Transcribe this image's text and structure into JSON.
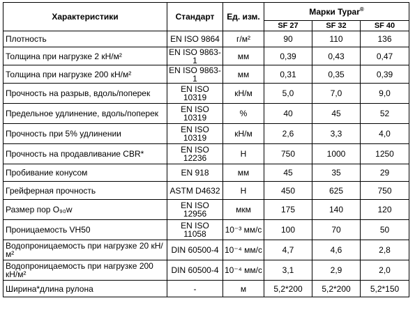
{
  "table": {
    "headers": {
      "feature": "Характеристики",
      "standard": "Стандарт",
      "unit": "Ед. изм.",
      "brands": "Марки Typar",
      "brands_sup": "®"
    },
    "brands": [
      "SF 27",
      "SF 32",
      "SF 40"
    ],
    "rows": [
      {
        "feature": "Плотность",
        "standard": "EN ISO 9864",
        "unit": "г/м²",
        "values": [
          "90",
          "110",
          "136"
        ]
      },
      {
        "feature": "Толщина при нагрузке 2 кН/м²",
        "standard": "EN ISO 9863-1",
        "unit": "мм",
        "values": [
          "0,39",
          "0,43",
          "0,47"
        ]
      },
      {
        "feature": "Толщина при нагрузке 200 кН/м²",
        "standard": "EN ISO 9863-1",
        "unit": "мм",
        "values": [
          "0,31",
          "0,35",
          "0,39"
        ]
      },
      {
        "feature": "Прочность на разрыв, вдоль/поперек",
        "standard": "EN ISO 10319",
        "unit": "кН/м",
        "values": [
          "5,0",
          "7,0",
          "9,0"
        ]
      },
      {
        "feature": "Предельное удлинение, вдоль/поперек",
        "standard": "EN ISO 10319",
        "unit": "%",
        "values": [
          "40",
          "45",
          "52"
        ]
      },
      {
        "feature": "Прочность при 5% удлинении",
        "standard": "EN ISO 10319",
        "unit": "кН/м",
        "values": [
          "2,6",
          "3,3",
          "4,0"
        ]
      },
      {
        "feature": "Прочность на продавливание CBR*",
        "standard": "EN ISO 12236",
        "unit": "Н",
        "values": [
          "750",
          "1000",
          "1250"
        ]
      },
      {
        "feature": "Пробивание конусом",
        "standard": "EN 918",
        "unit": "мм",
        "values": [
          "45",
          "35",
          "29"
        ]
      },
      {
        "feature": "Грейферная прочность",
        "standard": "ASTM D4632",
        "unit": "Н",
        "values": [
          "450",
          "625",
          "750"
        ]
      },
      {
        "feature": "Размер пор O₉₀w",
        "standard": "EN ISO 12956",
        "unit": "мкм",
        "values": [
          "175",
          "140",
          "120"
        ]
      },
      {
        "feature": "Проницаемость VH50",
        "standard": "EN ISO 11058",
        "unit": "10⁻³ мм/с",
        "values": [
          "100",
          "70",
          "50"
        ]
      },
      {
        "feature": "Водопроницаемость при нагрузке 20 кН/м²",
        "standard": "DIN 60500-4",
        "unit": "10⁻⁴ мм/с",
        "values": [
          "4,7",
          "4,6",
          "2,8"
        ]
      },
      {
        "feature": "Водопроницаемость при нагрузке 200 кН/м²",
        "standard": "DIN 60500-4",
        "unit": "10⁻⁴ мм/с",
        "values": [
          "3,1",
          "2,9",
          "2,0"
        ]
      },
      {
        "feature": "Ширина*длина рулона",
        "standard": "-",
        "unit": "м",
        "values": [
          "5,2*200",
          "5,2*200",
          "5,2*150"
        ]
      }
    ]
  }
}
